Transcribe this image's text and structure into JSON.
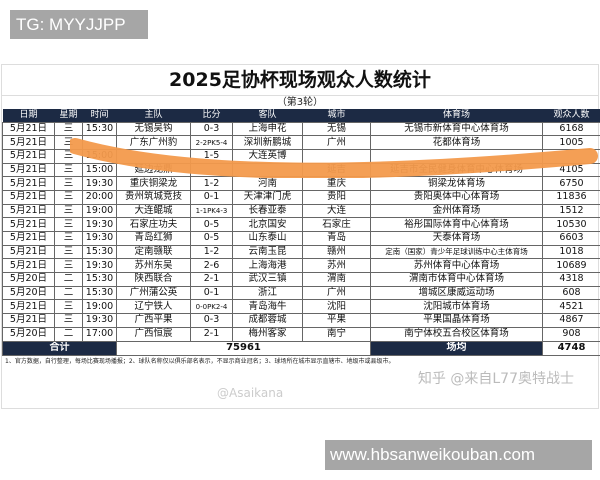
{
  "watermark_top": "TG: MYYJJPP",
  "title": "2025足协杯现场观众人数统计",
  "subtitle": "（第3轮）",
  "headers": [
    "日期",
    "星期",
    "时间",
    "主队",
    "比分",
    "客队",
    "城市",
    "体育场",
    "观众人数"
  ],
  "rows": [
    [
      "5月21日",
      "三",
      "15:30",
      "无锡吴钩",
      "0-3",
      "上海申花",
      "无锡",
      "无锡市新体育中心体育场",
      "6168"
    ],
    [
      "5月21日",
      "三",
      "",
      "广东广州豹",
      "2-2PK5-4",
      "深圳新鹏城",
      "广州",
      "花都体育场",
      "1005"
    ],
    [
      "5月21日",
      "三",
      "15:00",
      "",
      "1-5",
      "大连英博",
      "",
      "",
      ""
    ],
    [
      "5月21日",
      "三",
      "15:00",
      "延边龙鼎",
      "",
      "",
      "延吉",
      "延吉市全民健身体育中心体育场",
      "4105"
    ],
    [
      "5月21日",
      "三",
      "19:30",
      "重庆铜梁龙",
      "1-2",
      "河南",
      "重庆",
      "铜梁龙体育场",
      "6750"
    ],
    [
      "5月21日",
      "三",
      "20:00",
      "贵州筑城竞技",
      "0-1",
      "天津津门虎",
      "贵阳",
      "贵阳奥体中心体育场",
      "11836"
    ],
    [
      "5月21日",
      "三",
      "19:00",
      "大连鲲城",
      "1-1PK4-3",
      "长春亚泰",
      "大连",
      "金州体育场",
      "1512"
    ],
    [
      "5月21日",
      "三",
      "19:30",
      "石家庄功夫",
      "0-5",
      "北京国安",
      "石家庄",
      "裕彤国际体育中心体育场",
      "10530"
    ],
    [
      "5月21日",
      "三",
      "19:30",
      "青岛红狮",
      "0-5",
      "山东泰山",
      "青岛",
      "天泰体育场",
      "6603"
    ],
    [
      "5月21日",
      "三",
      "15:30",
      "定南赣联",
      "1-2",
      "云南玉昆",
      "赣州",
      "定南（国家）青少年足球训练中心主体育场",
      "1018"
    ],
    [
      "5月21日",
      "三",
      "19:30",
      "苏州东吴",
      "2-6",
      "上海海港",
      "苏州",
      "苏州体育中心体育场",
      "10689"
    ],
    [
      "5月20日",
      "二",
      "15:30",
      "陕西联合",
      "2-1",
      "武汉三镇",
      "渭南",
      "渭南市体育中心体育场",
      "4318"
    ],
    [
      "5月20日",
      "二",
      "15:30",
      "广州蒲公英",
      "0-1",
      "浙江",
      "广州",
      "增城区康威运动场",
      "608"
    ],
    [
      "5月21日",
      "三",
      "19:00",
      "辽宁铁人",
      "0-0PK2-4",
      "青岛海牛",
      "沈阳",
      "沈阳城市体育场",
      "4521"
    ],
    [
      "5月21日",
      "三",
      "19:30",
      "广西平果",
      "0-3",
      "成都蓉城",
      "平果",
      "平果国晶体育场",
      "4867"
    ],
    [
      "5月20日",
      "二",
      "17:00",
      "广西恒宸",
      "2-1",
      "梅州客家",
      "南宁",
      "南宁体校五合校区体育场",
      "908"
    ]
  ],
  "total": {
    "label": "合计",
    "value": "75961",
    "avg_label": "场均",
    "avg_value": "4748"
  },
  "note": "1、官方数据，自行整理，每场比赛现场播报；2、球队名称仅以俱乐部名表示，不显示商业冠名；3、球场所在城市显示直辖市、地级市或县级市。",
  "watermark_zhihu": "知乎 @来自L77奥特战士",
  "watermark_weibo": "@Asaikana",
  "watermark_url": "www.hbsanweikouban.com",
  "colors": {
    "header_bg": "#1c2a44",
    "stroke": "#f39a4c"
  }
}
